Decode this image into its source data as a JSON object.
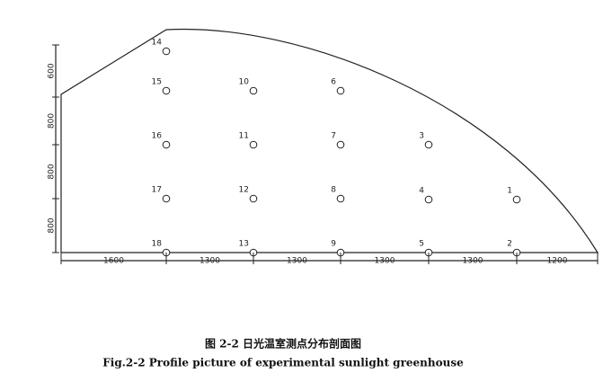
{
  "points": [
    {
      "label": "1"
    },
    {
      "label": "2"
    },
    {
      "label": "3"
    },
    {
      "label": "4"
    },
    {
      "label": "5"
    },
    {
      "label": "6"
    },
    {
      "label": "7"
    },
    {
      "label": "8"
    },
    {
      "label": "9"
    },
    {
      "label": "10"
    },
    {
      "label": "11"
    },
    {
      "label": "12"
    },
    {
      "label": "13"
    },
    {
      "label": "14"
    },
    {
      "label": "15"
    },
    {
      "label": "16"
    },
    {
      "label": "17"
    },
    {
      "label": "18"
    }
  ],
  "dimensions": {
    "horizontal": [
      "1600",
      "1300",
      "1300",
      "1300",
      "1300",
      "1200"
    ],
    "vertical": [
      "600",
      "800",
      "800",
      "800"
    ]
  },
  "caption": {
    "zh": "图 2-2  日光温室测点分布剖面图",
    "en": "Fig.2-2 Profile picture of experimental sunlight greenhouse"
  }
}
